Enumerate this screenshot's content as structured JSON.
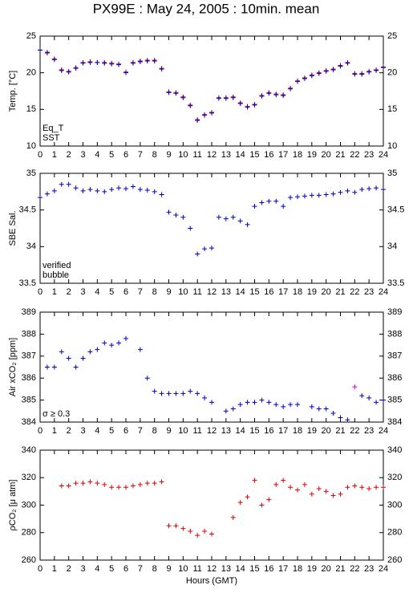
{
  "chart_data": [
    {
      "type": "scatter",
      "title": "PX99E : May 24, 2005 : 10min. mean",
      "ylabel": "Temp. [°C]",
      "x": [
        0,
        0.5,
        1,
        1.5,
        2,
        2.5,
        3,
        3.5,
        4,
        4.5,
        5,
        5.5,
        6,
        6.5,
        7,
        7.5,
        8,
        8.5,
        9,
        9.5,
        10,
        10.5,
        11,
        11.5,
        12,
        12.5,
        13,
        13.5,
        14,
        14.5,
        15,
        15.5,
        16,
        16.5,
        17,
        17.5,
        18,
        18.5,
        19,
        19.5,
        20,
        20.5,
        21,
        21.5,
        22,
        22.5,
        23,
        23.5,
        24
      ],
      "series": [
        {
          "name": "Eq_T",
          "color": "#e00000",
          "values": [
            23.1,
            22.8,
            21.9,
            20.4,
            20.2,
            20.7,
            21.4,
            21.5,
            21.4,
            21.4,
            21.3,
            21.2,
            20.1,
            21.4,
            21.6,
            21.7,
            21.7,
            20.6,
            17.4,
            17.3,
            16.7,
            15.6,
            13.6,
            14.3,
            14.6,
            16.6,
            16.6,
            16.7,
            15.9,
            15.4,
            15.7,
            16.9,
            17.3,
            17.1,
            17.0,
            17.9,
            18.9,
            19.3,
            19.7,
            20.0,
            20.3,
            20.5,
            21.0,
            21.4,
            19.9,
            19.9,
            20.2,
            20.4,
            20.8
          ]
        },
        {
          "name": "SST",
          "color": "#0000c0",
          "values": [
            23.1,
            22.7,
            21.8,
            20.3,
            20.1,
            20.6,
            21.3,
            21.4,
            21.4,
            21.3,
            21.2,
            21.1,
            20.0,
            21.3,
            21.5,
            21.6,
            21.6,
            20.5,
            17.3,
            17.2,
            16.6,
            15.5,
            13.5,
            14.2,
            14.5,
            16.5,
            16.5,
            16.6,
            15.8,
            15.3,
            15.6,
            16.8,
            17.2,
            17.0,
            16.9,
            17.8,
            18.8,
            19.2,
            19.6,
            19.9,
            20.2,
            20.4,
            20.9,
            21.3,
            19.8,
            19.8,
            20.1,
            20.3,
            20.7
          ]
        }
      ],
      "xlim": [
        0,
        24
      ],
      "xticks": [
        0,
        1,
        2,
        3,
        4,
        5,
        6,
        7,
        8,
        9,
        10,
        11,
        12,
        13,
        14,
        15,
        16,
        17,
        18,
        19,
        20,
        21,
        22,
        23,
        24
      ],
      "ylim": [
        10,
        25
      ],
      "yticks": [
        10,
        15,
        20,
        25
      ]
    },
    {
      "type": "scatter",
      "ylabel": "SBE Sal.",
      "x": [
        0,
        0.5,
        1,
        1.5,
        2,
        2.5,
        3,
        3.5,
        4,
        4.5,
        5,
        5.5,
        6,
        6.5,
        7,
        7.5,
        8,
        8.5,
        9,
        9.5,
        10,
        10.5,
        11,
        11.5,
        12,
        12.5,
        13,
        13.5,
        14,
        14.5,
        15,
        15.5,
        16,
        16.5,
        17,
        17.5,
        18,
        18.5,
        19,
        19.5,
        20,
        20.5,
        21,
        21.5,
        22,
        22.5,
        23,
        23.5,
        24
      ],
      "series": [
        {
          "name": "verified",
          "color": "#0000c0",
          "values": [
            34.67,
            34.72,
            34.76,
            34.85,
            34.85,
            34.8,
            34.76,
            34.78,
            34.76,
            34.75,
            34.78,
            34.8,
            34.79,
            34.82,
            34.78,
            34.77,
            34.75,
            34.71,
            34.47,
            34.43,
            34.4,
            34.25,
            33.9,
            33.97,
            33.98,
            34.4,
            34.38,
            34.4,
            34.35,
            34.3,
            34.55,
            34.6,
            34.62,
            34.62,
            34.55,
            34.67,
            34.68,
            34.69,
            34.7,
            34.7,
            34.71,
            34.72,
            34.74,
            34.76,
            34.74,
            34.78,
            34.79,
            34.8,
            34.78
          ]
        },
        {
          "name": "bubble",
          "color": "#d000d0",
          "values": [
            null,
            null,
            null,
            null,
            null,
            null,
            null,
            null,
            null,
            null,
            null,
            null,
            null,
            null,
            null,
            null,
            null,
            null,
            null,
            null,
            null,
            null,
            null,
            null,
            null,
            null,
            null,
            null,
            null,
            null,
            null,
            null,
            null,
            null,
            null,
            null,
            null,
            null,
            null,
            null,
            null,
            null,
            null,
            null,
            null,
            null,
            null,
            null,
            null
          ]
        }
      ],
      "xlim": [
        0,
        24
      ],
      "xticks": [
        0,
        1,
        2,
        3,
        4,
        5,
        6,
        7,
        8,
        9,
        10,
        11,
        12,
        13,
        14,
        15,
        16,
        17,
        18,
        19,
        20,
        21,
        22,
        23,
        24
      ],
      "ylim": [
        33.5,
        35
      ],
      "yticks": [
        33.5,
        34,
        34.5,
        35
      ]
    },
    {
      "type": "scatter",
      "ylabel": "Air xCO₂ [ppm]",
      "x": [
        0,
        0.5,
        1,
        1.5,
        2,
        2.5,
        3,
        3.5,
        4,
        4.5,
        5,
        5.5,
        6,
        6.5,
        7,
        7.5,
        8,
        8.5,
        9,
        9.5,
        10,
        10.5,
        11,
        11.5,
        12,
        12.5,
        13,
        13.5,
        14,
        14.5,
        15,
        15.5,
        16,
        16.5,
        17,
        17.5,
        18,
        18.5,
        19,
        19.5,
        20,
        20.5,
        21,
        21.5,
        22,
        22.5,
        23,
        23.5,
        24
      ],
      "series": [
        {
          "color": "#0000c0",
          "values": [
            null,
            386.5,
            386.5,
            387.2,
            386.9,
            386.5,
            386.9,
            387.2,
            387.3,
            387.6,
            387.5,
            387.6,
            387.8,
            null,
            387.3,
            386.0,
            385.4,
            385.3,
            385.3,
            385.3,
            385.3,
            385.4,
            385.3,
            385.1,
            384.9,
            null,
            384.5,
            384.6,
            384.8,
            384.9,
            384.9,
            385.0,
            384.9,
            384.8,
            384.7,
            384.8,
            384.8,
            null,
            384.7,
            384.6,
            384.6,
            384.4,
            384.2,
            384.1,
            null,
            385.2,
            385.1,
            384.9,
            385.0
          ]
        },
        {
          "name": "σ ≥ 0.3",
          "color": "#d000d0",
          "values": [
            null,
            null,
            null,
            null,
            null,
            null,
            null,
            null,
            null,
            null,
            null,
            null,
            null,
            null,
            null,
            null,
            null,
            null,
            null,
            null,
            null,
            null,
            null,
            null,
            null,
            null,
            null,
            null,
            null,
            null,
            null,
            null,
            null,
            null,
            null,
            null,
            null,
            null,
            null,
            null,
            null,
            null,
            null,
            null,
            385.6,
            null,
            null,
            null,
            null
          ]
        }
      ],
      "xlim": [
        0,
        24
      ],
      "xticks": [
        0,
        1,
        2,
        3,
        4,
        5,
        6,
        7,
        8,
        9,
        10,
        11,
        12,
        13,
        14,
        15,
        16,
        17,
        18,
        19,
        20,
        21,
        22,
        23,
        24
      ],
      "ylim": [
        384,
        389
      ],
      "yticks": [
        384,
        385,
        386,
        387,
        388,
        389
      ]
    },
    {
      "type": "scatter",
      "ylabel": "ρCO₂ [μ atm]",
      "xlabel": "Hours (GMT)",
      "x": [
        0,
        0.5,
        1,
        1.5,
        2,
        2.5,
        3,
        3.5,
        4,
        4.5,
        5,
        5.5,
        6,
        6.5,
        7,
        7.5,
        8,
        8.5,
        9,
        9.5,
        10,
        10.5,
        11,
        11.5,
        12,
        12.5,
        13,
        13.5,
        14,
        14.5,
        15,
        15.5,
        16,
        16.5,
        17,
        17.5,
        18,
        18.5,
        19,
        19.5,
        20,
        20.5,
        21,
        21.5,
        22,
        22.5,
        23,
        23.5,
        24
      ],
      "series": [
        {
          "color": "#e00000",
          "values": [
            null,
            null,
            null,
            314,
            314,
            316,
            316,
            317,
            316,
            315,
            313,
            313,
            313,
            314,
            315,
            316,
            316,
            317,
            285,
            285,
            283,
            281,
            278,
            281,
            279,
            null,
            null,
            291,
            302,
            306,
            318,
            300,
            304,
            315,
            318,
            313,
            311,
            315,
            308,
            312,
            310,
            307,
            308,
            313,
            314,
            313,
            312,
            313,
            313
          ]
        }
      ],
      "xlim": [
        0,
        24
      ],
      "xticks": [
        0,
        1,
        2,
        3,
        4,
        5,
        6,
        7,
        8,
        9,
        10,
        11,
        12,
        13,
        14,
        15,
        16,
        17,
        18,
        19,
        20,
        21,
        22,
        23,
        24
      ],
      "ylim": [
        260,
        340
      ],
      "yticks": [
        260,
        280,
        300,
        320,
        340
      ]
    }
  ]
}
